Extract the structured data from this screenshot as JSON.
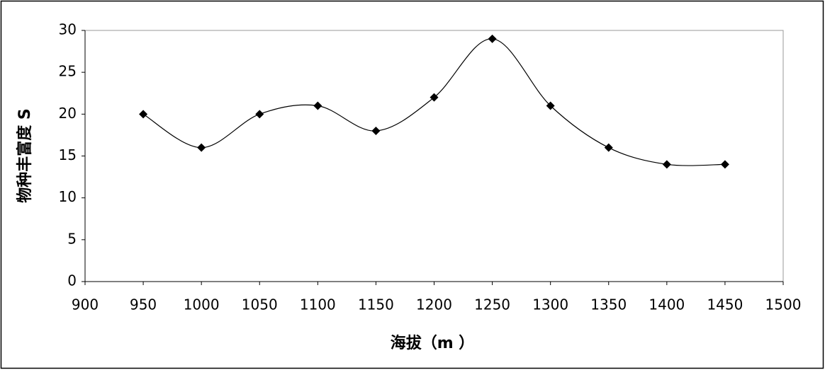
{
  "chart_data": {
    "type": "line",
    "x_label": "海拔（m ）",
    "y_label": "物种丰富度 S",
    "x": [
      950,
      1000,
      1050,
      1100,
      1150,
      1200,
      1250,
      1300,
      1350,
      1400,
      1450
    ],
    "values": [
      20,
      16,
      20,
      21,
      18,
      22,
      29,
      21,
      16,
      14,
      14
    ],
    "color": "#000000",
    "smooth": true,
    "marker": "diamond",
    "xlim": [
      900,
      1500
    ],
    "xticks": [
      900,
      950,
      1000,
      1050,
      1100,
      1150,
      1200,
      1250,
      1300,
      1350,
      1400,
      1450,
      1500
    ],
    "ylim": [
      0,
      30
    ],
    "yticks": [
      0,
      5,
      10,
      15,
      20,
      25,
      30
    ]
  }
}
